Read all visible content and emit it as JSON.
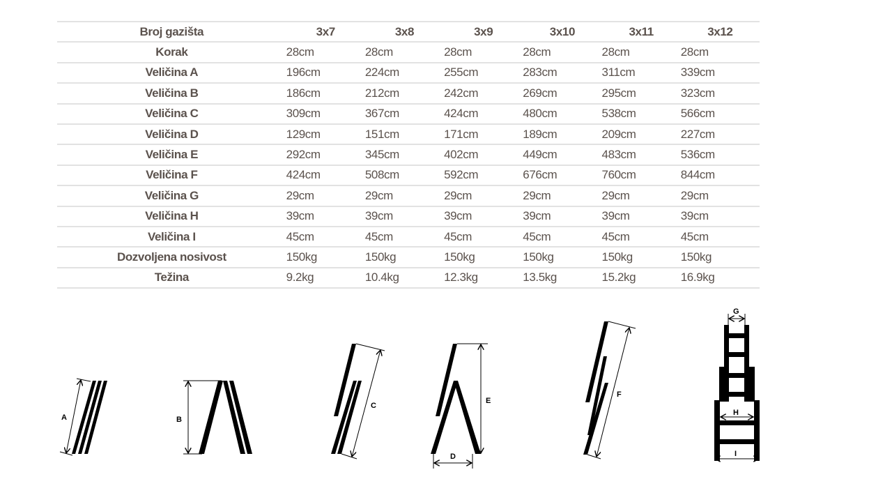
{
  "table": {
    "header_label": "Broj gazišta",
    "columns": [
      "3x7",
      "3x8",
      "3x9",
      "3x10",
      "3x11",
      "3x12"
    ],
    "rows": [
      {
        "label": "Korak",
        "values": [
          "28cm",
          "28cm",
          "28cm",
          "28cm",
          "28cm",
          "28cm"
        ]
      },
      {
        "label": "Veličina A",
        "values": [
          "196cm",
          "224cm",
          "255cm",
          "283cm",
          "311cm",
          "339cm"
        ]
      },
      {
        "label": "Veličina B",
        "values": [
          "186cm",
          "212cm",
          "242cm",
          "269cm",
          "295cm",
          "323cm"
        ]
      },
      {
        "label": "Veličina C",
        "values": [
          "309cm",
          "367cm",
          "424cm",
          "480cm",
          "538cm",
          "566cm"
        ]
      },
      {
        "label": "Veličina D",
        "values": [
          "129cm",
          "151cm",
          "171cm",
          "189cm",
          "209cm",
          "227cm"
        ]
      },
      {
        "label": "Veličina E",
        "values": [
          "292cm",
          "345cm",
          "402cm",
          "449cm",
          "483cm",
          "536cm"
        ]
      },
      {
        "label": "Veličina F",
        "values": [
          "424cm",
          "508cm",
          "592cm",
          "676cm",
          "760cm",
          "844cm"
        ]
      },
      {
        "label": "Veličina G",
        "values": [
          "29cm",
          "29cm",
          "29cm",
          "29cm",
          "29cm",
          "29cm"
        ]
      },
      {
        "label": "Veličina H",
        "values": [
          "39cm",
          "39cm",
          "39cm",
          "39cm",
          "39cm",
          "39cm"
        ]
      },
      {
        "label": "Veličina I",
        "values": [
          "45cm",
          "45cm",
          "45cm",
          "45cm",
          "45cm",
          "45cm"
        ]
      },
      {
        "label": "Dozvoljena nosivost",
        "values": [
          "150kg",
          "150kg",
          "150kg",
          "150kg",
          "150kg",
          "150kg"
        ]
      },
      {
        "label": "Težina",
        "values": [
          "9.2kg",
          "10.4kg",
          "12.3kg",
          "13.5kg",
          "15.2kg",
          "16.9kg"
        ]
      }
    ]
  },
  "diagrams": {
    "A": "A",
    "B": "B",
    "C": "C",
    "D": "D",
    "E": "E",
    "F": "F",
    "G": "G",
    "H": "H",
    "I": "I"
  }
}
